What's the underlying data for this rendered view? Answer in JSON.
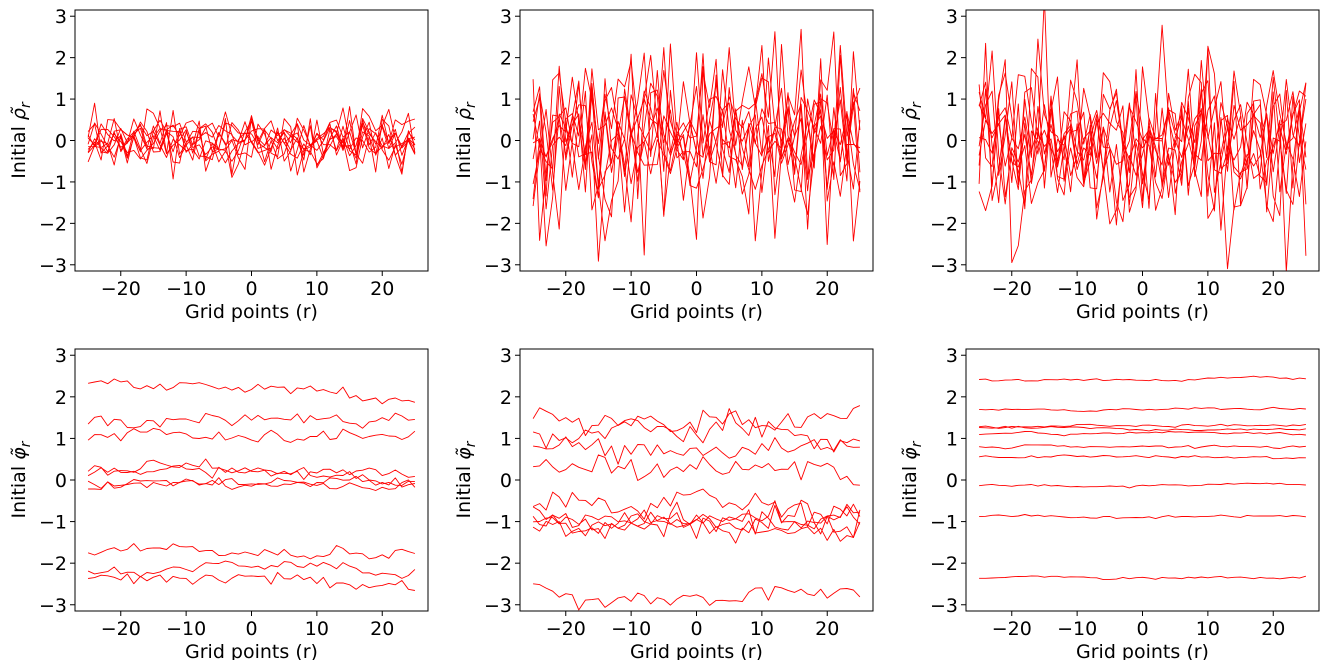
{
  "colors": {
    "series": "#ff0000",
    "axis": "#000000",
    "background": "#ffffff"
  },
  "chart_data": [
    {
      "type": "line",
      "id": "rho-a",
      "ylabel_var": "rho",
      "ylabel": "Initial ρ̃r",
      "xlabel": "Grid points (r)",
      "xlim": [
        -27,
        27
      ],
      "ylim": [
        -3.15,
        3.15
      ],
      "x_range": [
        -25,
        25
      ],
      "x_ticks": [
        -20,
        -10,
        0,
        10,
        20
      ],
      "x_tick_labels": [
        "−20",
        "−10",
        "0",
        "10",
        "20"
      ],
      "y_ticks": [
        -3,
        -2,
        -1,
        0,
        1,
        2,
        3
      ],
      "y_tick_labels": [
        "−3",
        "−2",
        "−1",
        "0",
        "1",
        "2",
        "3"
      ],
      "style": "noise",
      "series_count": 10,
      "offsets": [
        0,
        0,
        0,
        0,
        0,
        0,
        0,
        0,
        0,
        0
      ],
      "amplitude": 0.33,
      "drift": 0,
      "seed": 11
    },
    {
      "type": "line",
      "id": "rho-b",
      "ylabel_var": "rho",
      "ylabel": "Initial ρ̃r",
      "xlabel": "Grid points (r)",
      "xlim": [
        -27,
        27
      ],
      "ylim": [
        -3.15,
        3.15
      ],
      "x_range": [
        -25,
        25
      ],
      "x_ticks": [
        -20,
        -10,
        0,
        10,
        20
      ],
      "x_tick_labels": [
        "−20",
        "−10",
        "0",
        "10",
        "20"
      ],
      "y_ticks": [
        -3,
        -2,
        -1,
        0,
        1,
        2,
        3
      ],
      "y_tick_labels": [
        "−3",
        "−2",
        "−1",
        "0",
        "1",
        "2",
        "3"
      ],
      "style": "noise",
      "series_count": 10,
      "offsets": [
        0,
        0,
        0,
        0,
        0,
        0,
        0,
        0,
        0,
        0
      ],
      "amplitude": 0.95,
      "drift": 0,
      "seed": 23
    },
    {
      "type": "line",
      "id": "rho-c",
      "ylabel_var": "rho",
      "ylabel": "Initial ρ̃r",
      "xlabel": "Grid points (r)",
      "xlim": [
        -27,
        27
      ],
      "ylim": [
        -3.15,
        3.15
      ],
      "x_range": [
        -25,
        25
      ],
      "x_ticks": [
        -20,
        -10,
        0,
        10,
        20
      ],
      "x_tick_labels": [
        "−20",
        "−10",
        "0",
        "10",
        "20"
      ],
      "y_ticks": [
        -3,
        -2,
        -1,
        0,
        1,
        2,
        3
      ],
      "y_tick_labels": [
        "−3",
        "−2",
        "−1",
        "0",
        "1",
        "2",
        "3"
      ],
      "style": "noise",
      "series_count": 10,
      "offsets": [
        0,
        0,
        0,
        0,
        0,
        0,
        0,
        0,
        0,
        0
      ],
      "amplitude": 0.95,
      "drift": 0,
      "seed": 37
    },
    {
      "type": "line",
      "id": "phi-a",
      "ylabel_var": "phi",
      "ylabel": "Initial φ̃r",
      "xlabel": "Grid points (r)",
      "xlim": [
        -27,
        27
      ],
      "ylim": [
        -3.15,
        3.15
      ],
      "x_range": [
        -25,
        25
      ],
      "x_ticks": [
        -20,
        -10,
        0,
        10,
        20
      ],
      "x_tick_labels": [
        "−20",
        "−10",
        "0",
        "10",
        "20"
      ],
      "y_ticks": [
        -3,
        -2,
        -1,
        0,
        1,
        2,
        3
      ],
      "y_tick_labels": [
        "−3",
        "−2",
        "−1",
        "0",
        "1",
        "2",
        "3"
      ],
      "style": "wander",
      "series_count": 10,
      "offsets": [
        2.25,
        1.45,
        1.0,
        0.25,
        0.1,
        -0.1,
        -0.15,
        -1.7,
        -2.25,
        -2.4
      ],
      "amplitude": 0.06,
      "drift": 0.12,
      "seed": 41
    },
    {
      "type": "line",
      "id": "phi-b",
      "ylabel_var": "phi",
      "ylabel": "Initial φ̃r",
      "xlabel": "Grid points (r)",
      "xlim": [
        -27,
        27
      ],
      "ylim": [
        -3.15,
        3.15
      ],
      "x_range": [
        -25,
        25
      ],
      "x_ticks": [
        -20,
        -10,
        0,
        10,
        20
      ],
      "x_tick_labels": [
        "−20",
        "−10",
        "0",
        "10",
        "20"
      ],
      "y_ticks": [
        -3,
        -2,
        -1,
        0,
        1,
        2,
        3
      ],
      "y_tick_labels": [
        "−3",
        "−2",
        "−1",
        "0",
        "1",
        "2",
        "3"
      ],
      "style": "wander",
      "series_count": 10,
      "offsets": [
        1.55,
        1.2,
        0.8,
        0.2,
        -0.55,
        -0.8,
        -0.9,
        -1.05,
        -1.1,
        -2.5
      ],
      "amplitude": 0.13,
      "drift": 0.25,
      "seed": 53
    },
    {
      "type": "line",
      "id": "phi-c",
      "ylabel_var": "phi",
      "ylabel": "Initial φ̃r",
      "xlabel": "Grid points (r)",
      "xlim": [
        -27,
        27
      ],
      "ylim": [
        -3.15,
        3.15
      ],
      "x_range": [
        -25,
        25
      ],
      "x_ticks": [
        -20,
        -10,
        0,
        10,
        20
      ],
      "x_tick_labels": [
        "−20",
        "−10",
        "0",
        "10",
        "20"
      ],
      "y_ticks": [
        -3,
        -2,
        -1,
        0,
        1,
        2,
        3
      ],
      "y_tick_labels": [
        "−3",
        "−2",
        "−1",
        "0",
        "1",
        "2",
        "3"
      ],
      "style": "wander",
      "series_count": 10,
      "offsets": [
        2.42,
        1.7,
        1.28,
        1.22,
        1.1,
        0.8,
        0.55,
        -0.12,
        -0.88,
        -2.35
      ],
      "amplitude": 0.012,
      "drift": 0.03,
      "seed": 67
    }
  ]
}
